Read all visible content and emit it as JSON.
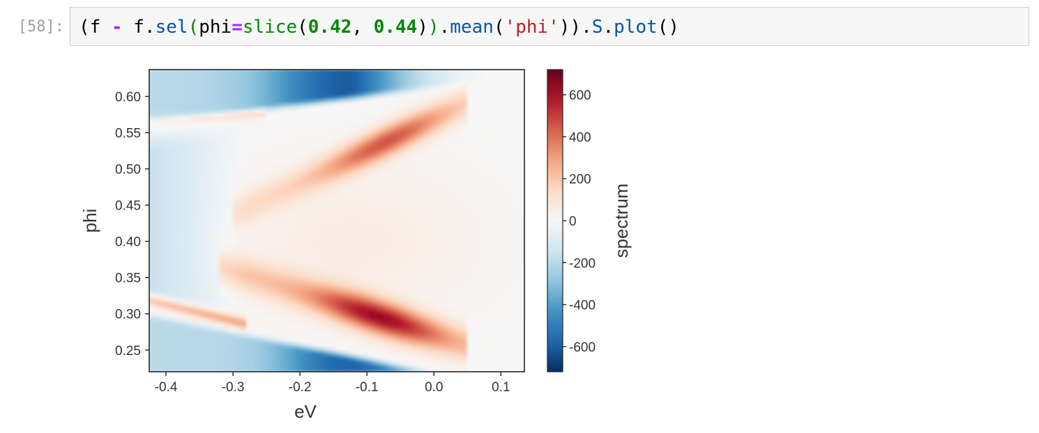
{
  "cell": {
    "prompt": "[58]:",
    "code_tokens": [
      {
        "t": "(",
        "c": "tk-paren"
      },
      {
        "t": "f",
        "c": "tk-name"
      },
      {
        "t": " ",
        "c": "tk-name"
      },
      {
        "t": "-",
        "c": "tk-op"
      },
      {
        "t": " ",
        "c": "tk-name"
      },
      {
        "t": "f",
        "c": "tk-name"
      },
      {
        "t": ".",
        "c": "tk-name"
      },
      {
        "t": "sel",
        "c": "tk-attr"
      },
      {
        "t": "(",
        "c": "tk-paren2"
      },
      {
        "t": "phi",
        "c": "tk-name"
      },
      {
        "t": "=",
        "c": "tk-op"
      },
      {
        "t": "slice",
        "c": "tk-paren2"
      },
      {
        "t": "(",
        "c": "tk-paren"
      },
      {
        "t": "0.42",
        "c": "tk-num"
      },
      {
        "t": ", ",
        "c": "tk-name"
      },
      {
        "t": "0.44",
        "c": "tk-num"
      },
      {
        "t": ")",
        "c": "tk-paren"
      },
      {
        "t": ")",
        "c": "tk-paren2"
      },
      {
        "t": ".",
        "c": "tk-name"
      },
      {
        "t": "mean",
        "c": "tk-attr"
      },
      {
        "t": "(",
        "c": "tk-paren"
      },
      {
        "t": "'phi'",
        "c": "tk-str"
      },
      {
        "t": "))",
        "c": "tk-paren"
      },
      {
        "t": ".",
        "c": "tk-name"
      },
      {
        "t": "S",
        "c": "tk-attr"
      },
      {
        "t": ".",
        "c": "tk-name"
      },
      {
        "t": "plot",
        "c": "tk-attr"
      },
      {
        "t": "()",
        "c": "tk-paren"
      }
    ]
  },
  "chart_data": {
    "type": "heatmap",
    "xlabel": "eV",
    "ylabel": "phi",
    "colorbar_label": "spectrum",
    "colormap": "RdBu_r",
    "xlim": [
      -0.425,
      0.135
    ],
    "ylim": [
      0.22,
      0.637
    ],
    "clim": [
      -720,
      720
    ],
    "x_ticks": [
      -0.4,
      -0.3,
      -0.2,
      -0.1,
      0.0,
      0.1
    ],
    "x_tick_labels": [
      "-0.4",
      "-0.3",
      "-0.2",
      "-0.1",
      "0.0",
      "0.1"
    ],
    "y_ticks": [
      0.25,
      0.3,
      0.35,
      0.4,
      0.45,
      0.5,
      0.55,
      0.6
    ],
    "y_tick_labels": [
      "0.25",
      "0.30",
      "0.35",
      "0.40",
      "0.45",
      "0.50",
      "0.55",
      "0.60"
    ],
    "colorbar_ticks": [
      600,
      400,
      200,
      0,
      -200,
      -400,
      -600
    ],
    "colorbar_tick_labels": [
      "600",
      "400",
      "200",
      "0",
      "-200",
      "-400",
      "-600"
    ],
    "features": [
      {
        "label": "upper positive band",
        "from": [
          -0.27,
          0.45
        ],
        "to": [
          -0.03,
          0.555
        ],
        "peak_value": 450
      },
      {
        "label": "lower positive band",
        "from": [
          -0.27,
          0.35
        ],
        "to": [
          -0.03,
          0.28
        ],
        "peak_value": 600
      },
      {
        "label": "upper-left negative region",
        "peak_value": -550
      },
      {
        "label": "bottom negative region",
        "peak_value": -550
      }
    ]
  }
}
